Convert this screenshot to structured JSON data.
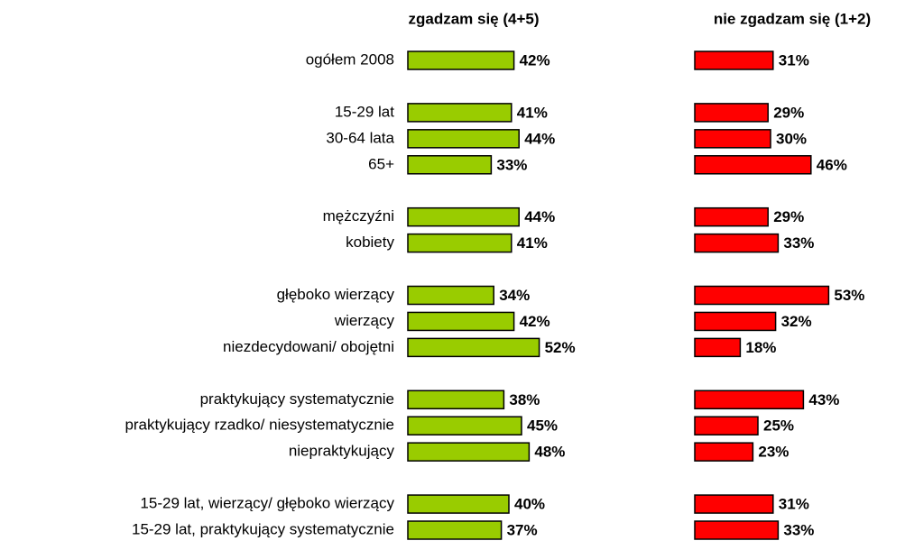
{
  "chart_data": {
    "type": "bar",
    "categories": [
      "ogółem 2008",
      null,
      "15-29 lat",
      "30-64 lata",
      "65+",
      null,
      "mężczyźni",
      "kobiety",
      null,
      "głęboko wierzący",
      "wierzący",
      "niezdecydowani/ obojętni",
      null,
      "praktykujący systematycznie",
      "praktykujący rzadko/ niesystematycznie",
      "niepraktykujący",
      null,
      "15-29 lat, wierzący/ głęboko wierzący",
      "15-29 lat, praktykujący systematycznie"
    ],
    "series": [
      {
        "name": "zgadzam się (4+5)",
        "color": "#99cc00",
        "values": [
          42,
          null,
          41,
          44,
          33,
          null,
          44,
          41,
          null,
          34,
          42,
          52,
          null,
          38,
          45,
          48,
          null,
          40,
          37
        ],
        "value_labels": [
          "42%",
          null,
          "41%",
          "44%",
          "33%",
          null,
          "44%",
          "41%",
          null,
          "34%",
          "42%",
          "52%",
          null,
          "38%",
          "45%",
          "48%",
          null,
          "40%",
          "37%"
        ]
      },
      {
        "name": "nie zgadzam się (1+2)",
        "color": "#ff0000",
        "values": [
          31,
          null,
          29,
          30,
          46,
          null,
          29,
          33,
          null,
          53,
          32,
          18,
          null,
          43,
          25,
          23,
          null,
          31,
          33
        ],
        "value_labels": [
          "31%",
          null,
          "29%",
          "30%",
          "46%",
          null,
          "29%",
          "33%",
          null,
          "53%",
          "32%",
          "18%",
          null,
          "43%",
          "25%",
          "23%",
          null,
          "31%",
          "33%"
        ]
      }
    ]
  }
}
